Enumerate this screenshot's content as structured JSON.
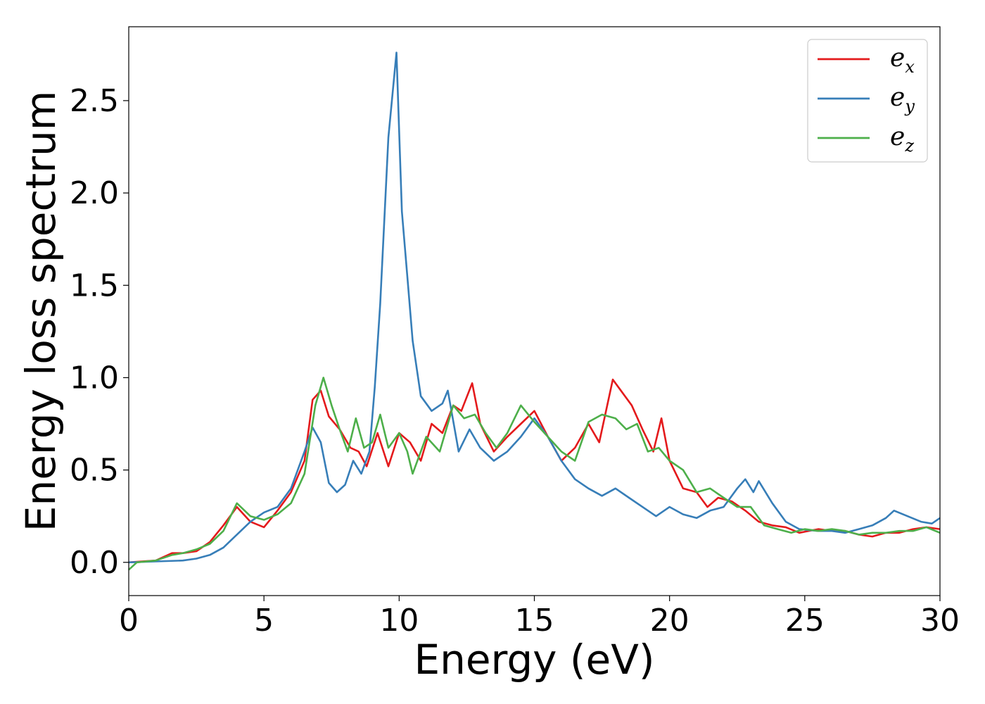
{
  "chart_data": {
    "type": "line",
    "title": "",
    "xlabel": "Energy (eV)",
    "ylabel": "Energy loss spectrum",
    "xlim": [
      0,
      30
    ],
    "ylim": [
      -0.18,
      2.9
    ],
    "xticks": [
      0,
      5,
      10,
      15,
      20,
      25,
      30
    ],
    "yticks": [
      0.0,
      0.5,
      1.0,
      1.5,
      2.0,
      2.5
    ],
    "xtick_labels": [
      "0",
      "5",
      "10",
      "15",
      "20",
      "25",
      "30"
    ],
    "ytick_labels": [
      "0.0",
      "0.5",
      "1.0",
      "1.5",
      "2.0",
      "2.5"
    ],
    "grid": false,
    "legend_position": "top-right",
    "series": [
      {
        "name": "e_x",
        "label_base": "e",
        "label_sub": "x",
        "color": "#e41a1c",
        "points": [
          [
            0,
            0
          ],
          [
            1,
            0.01
          ],
          [
            1.6,
            0.05
          ],
          [
            2,
            0.05
          ],
          [
            2.5,
            0.06
          ],
          [
            3,
            0.11
          ],
          [
            3.5,
            0.2
          ],
          [
            4,
            0.3
          ],
          [
            4.5,
            0.22
          ],
          [
            5,
            0.19
          ],
          [
            5.5,
            0.28
          ],
          [
            6,
            0.38
          ],
          [
            6.5,
            0.55
          ],
          [
            6.8,
            0.88
          ],
          [
            7.1,
            0.93
          ],
          [
            7.4,
            0.79
          ],
          [
            7.8,
            0.72
          ],
          [
            8.2,
            0.62
          ],
          [
            8.5,
            0.6
          ],
          [
            8.8,
            0.52
          ],
          [
            9.2,
            0.7
          ],
          [
            9.6,
            0.52
          ],
          [
            10,
            0.7
          ],
          [
            10.4,
            0.65
          ],
          [
            10.8,
            0.55
          ],
          [
            11.2,
            0.75
          ],
          [
            11.6,
            0.7
          ],
          [
            12,
            0.85
          ],
          [
            12.3,
            0.82
          ],
          [
            12.7,
            0.97
          ],
          [
            13,
            0.75
          ],
          [
            13.5,
            0.6
          ],
          [
            14,
            0.68
          ],
          [
            14.5,
            0.75
          ],
          [
            15,
            0.82
          ],
          [
            15.5,
            0.68
          ],
          [
            16,
            0.55
          ],
          [
            16.5,
            0.62
          ],
          [
            17,
            0.75
          ],
          [
            17.4,
            0.65
          ],
          [
            17.9,
            0.99
          ],
          [
            18.2,
            0.93
          ],
          [
            18.6,
            0.85
          ],
          [
            19,
            0.72
          ],
          [
            19.4,
            0.6
          ],
          [
            19.7,
            0.78
          ],
          [
            20,
            0.55
          ],
          [
            20.5,
            0.4
          ],
          [
            21,
            0.38
          ],
          [
            21.4,
            0.3
          ],
          [
            21.8,
            0.35
          ],
          [
            22.3,
            0.33
          ],
          [
            22.8,
            0.28
          ],
          [
            23.3,
            0.22
          ],
          [
            23.8,
            0.2
          ],
          [
            24.3,
            0.19
          ],
          [
            24.8,
            0.16
          ],
          [
            25.5,
            0.18
          ],
          [
            26,
            0.17
          ],
          [
            26.5,
            0.17
          ],
          [
            27,
            0.15
          ],
          [
            27.5,
            0.14
          ],
          [
            28,
            0.16
          ],
          [
            28.5,
            0.16
          ],
          [
            29,
            0.18
          ],
          [
            29.5,
            0.19
          ],
          [
            30,
            0.18
          ]
        ]
      },
      {
        "name": "e_y",
        "label_base": "e",
        "label_sub": "y",
        "color": "#377eb8",
        "points": [
          [
            0,
            0
          ],
          [
            1,
            0.005
          ],
          [
            2,
            0.01
          ],
          [
            2.5,
            0.02
          ],
          [
            3,
            0.04
          ],
          [
            3.5,
            0.08
          ],
          [
            4,
            0.15
          ],
          [
            4.5,
            0.22
          ],
          [
            5,
            0.27
          ],
          [
            5.5,
            0.3
          ],
          [
            6,
            0.4
          ],
          [
            6.5,
            0.6
          ],
          [
            6.8,
            0.73
          ],
          [
            7.1,
            0.65
          ],
          [
            7.4,
            0.43
          ],
          [
            7.7,
            0.38
          ],
          [
            8,
            0.42
          ],
          [
            8.3,
            0.55
          ],
          [
            8.6,
            0.48
          ],
          [
            8.9,
            0.6
          ],
          [
            9.1,
            0.95
          ],
          [
            9.3,
            1.4
          ],
          [
            9.6,
            2.3
          ],
          [
            9.9,
            2.76
          ],
          [
            10.1,
            1.9
          ],
          [
            10.3,
            1.55
          ],
          [
            10.5,
            1.2
          ],
          [
            10.8,
            0.9
          ],
          [
            11.2,
            0.82
          ],
          [
            11.6,
            0.86
          ],
          [
            11.8,
            0.93
          ],
          [
            12.2,
            0.6
          ],
          [
            12.6,
            0.72
          ],
          [
            13,
            0.62
          ],
          [
            13.5,
            0.55
          ],
          [
            14,
            0.6
          ],
          [
            14.5,
            0.68
          ],
          [
            15,
            0.78
          ],
          [
            15.5,
            0.68
          ],
          [
            16,
            0.55
          ],
          [
            16.5,
            0.45
          ],
          [
            17,
            0.4
          ],
          [
            17.5,
            0.36
          ],
          [
            18,
            0.4
          ],
          [
            18.5,
            0.35
          ],
          [
            19,
            0.3
          ],
          [
            19.5,
            0.25
          ],
          [
            20,
            0.3
          ],
          [
            20.5,
            0.26
          ],
          [
            21,
            0.24
          ],
          [
            21.5,
            0.28
          ],
          [
            22,
            0.3
          ],
          [
            22.5,
            0.4
          ],
          [
            22.8,
            0.45
          ],
          [
            23.1,
            0.38
          ],
          [
            23.3,
            0.44
          ],
          [
            23.8,
            0.32
          ],
          [
            24.3,
            0.22
          ],
          [
            24.8,
            0.18
          ],
          [
            25.5,
            0.17
          ],
          [
            26,
            0.17
          ],
          [
            26.5,
            0.16
          ],
          [
            27,
            0.18
          ],
          [
            27.5,
            0.2
          ],
          [
            28,
            0.24
          ],
          [
            28.3,
            0.28
          ],
          [
            28.8,
            0.25
          ],
          [
            29.3,
            0.22
          ],
          [
            29.7,
            0.21
          ],
          [
            30,
            0.24
          ]
        ]
      },
      {
        "name": "e_z",
        "label_base": "e",
        "label_sub": "z",
        "color": "#4daf4a",
        "points": [
          [
            0,
            -0.04
          ],
          [
            0.3,
            0
          ],
          [
            1,
            0.01
          ],
          [
            1.6,
            0.04
          ],
          [
            2,
            0.05
          ],
          [
            2.5,
            0.07
          ],
          [
            3,
            0.1
          ],
          [
            3.5,
            0.17
          ],
          [
            4,
            0.32
          ],
          [
            4.5,
            0.25
          ],
          [
            5,
            0.23
          ],
          [
            5.5,
            0.26
          ],
          [
            6,
            0.32
          ],
          [
            6.5,
            0.48
          ],
          [
            6.9,
            0.85
          ],
          [
            7.2,
            1.0
          ],
          [
            7.5,
            0.85
          ],
          [
            7.8,
            0.72
          ],
          [
            8.1,
            0.6
          ],
          [
            8.4,
            0.78
          ],
          [
            8.7,
            0.62
          ],
          [
            9,
            0.65
          ],
          [
            9.3,
            0.8
          ],
          [
            9.6,
            0.62
          ],
          [
            10,
            0.7
          ],
          [
            10.3,
            0.6
          ],
          [
            10.5,
            0.48
          ],
          [
            11,
            0.68
          ],
          [
            11.5,
            0.6
          ],
          [
            12,
            0.85
          ],
          [
            12.4,
            0.78
          ],
          [
            12.8,
            0.8
          ],
          [
            13.2,
            0.7
          ],
          [
            13.6,
            0.62
          ],
          [
            14,
            0.7
          ],
          [
            14.5,
            0.85
          ],
          [
            15,
            0.76
          ],
          [
            15.5,
            0.68
          ],
          [
            16,
            0.6
          ],
          [
            16.5,
            0.55
          ],
          [
            17,
            0.76
          ],
          [
            17.5,
            0.8
          ],
          [
            18,
            0.78
          ],
          [
            18.4,
            0.72
          ],
          [
            18.8,
            0.75
          ],
          [
            19.2,
            0.6
          ],
          [
            19.6,
            0.62
          ],
          [
            20,
            0.55
          ],
          [
            20.5,
            0.5
          ],
          [
            21,
            0.38
          ],
          [
            21.5,
            0.4
          ],
          [
            22,
            0.35
          ],
          [
            22.5,
            0.3
          ],
          [
            23,
            0.3
          ],
          [
            23.5,
            0.2
          ],
          [
            24,
            0.18
          ],
          [
            24.5,
            0.16
          ],
          [
            25,
            0.18
          ],
          [
            25.5,
            0.17
          ],
          [
            26,
            0.18
          ],
          [
            26.5,
            0.17
          ],
          [
            27,
            0.15
          ],
          [
            27.5,
            0.16
          ],
          [
            28,
            0.16
          ],
          [
            28.5,
            0.17
          ],
          [
            29,
            0.17
          ],
          [
            29.5,
            0.19
          ],
          [
            30,
            0.16
          ]
        ]
      }
    ]
  }
}
